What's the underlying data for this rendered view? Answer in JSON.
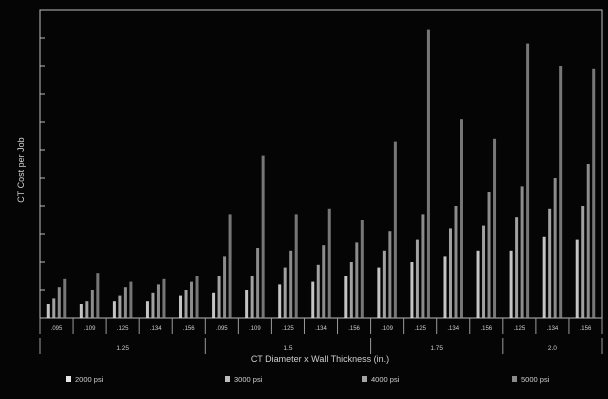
{
  "chart_data": {
    "type": "bar",
    "title": "",
    "ylabel": "CT Cost per Job",
    "xlabel": "CT Diameter x Wall Thickness (in.)",
    "ylim": [
      0,
      11
    ],
    "grid": false,
    "legend_position": "bottom",
    "categories": [
      ".095",
      ".109",
      ".125",
      ".134",
      ".156",
      ".095",
      ".109",
      ".125",
      ".134",
      ".156",
      ".109",
      ".125",
      ".134",
      ".156",
      ".125",
      ".134",
      ".156"
    ],
    "groups": [
      {
        "label": "1.25",
        "count": 5
      },
      {
        "label": "1.5",
        "count": 5
      },
      {
        "label": "1.75",
        "count": 4
      },
      {
        "label": "2.0",
        "count": 3
      }
    ],
    "series": [
      {
        "name": "2000 psi",
        "color": "#e6e6e6",
        "values": [
          0.5,
          0.5,
          0.6,
          0.6,
          0.8,
          0.9,
          1.0,
          1.2,
          1.3,
          1.5,
          1.8,
          2.0,
          2.2,
          2.4,
          2.4,
          2.9,
          2.8
        ]
      },
      {
        "name": "3000 psi",
        "color": "#bdbdbd",
        "values": [
          0.7,
          0.6,
          0.8,
          0.9,
          1.0,
          1.5,
          1.5,
          1.8,
          1.9,
          2.0,
          2.4,
          2.8,
          3.2,
          3.3,
          3.6,
          3.9,
          4.0
        ]
      },
      {
        "name": "4000 psi",
        "color": "#a5a5a5",
        "values": [
          1.1,
          1.0,
          1.1,
          1.2,
          1.3,
          2.2,
          2.5,
          2.4,
          2.6,
          2.7,
          3.1,
          3.7,
          4.0,
          4.5,
          4.7,
          5.0,
          5.5
        ]
      },
      {
        "name": "5000 psi",
        "color": "#8c8c8c",
        "values": [
          1.4,
          1.6,
          1.3,
          1.4,
          1.5,
          3.7,
          5.8,
          3.7,
          3.9,
          3.5,
          6.3,
          10.3,
          7.1,
          6.4,
          9.8,
          9.0,
          8.9
        ]
      }
    ]
  }
}
